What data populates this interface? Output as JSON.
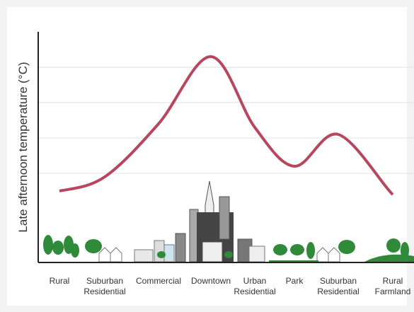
{
  "chart_data": {
    "type": "line",
    "ylabel": "Late afternoon temperature (°C)",
    "categories": [
      "Rural",
      "Suburban Residential",
      "Commercial",
      "Downtown",
      "Urban Residential",
      "Park",
      "Suburban Residential",
      "Rural Farmland"
    ],
    "values": [
      2.0,
      2.4,
      3.9,
      5.8,
      3.8,
      2.7,
      3.6,
      1.9
    ],
    "color": "#b5475f",
    "ylim": [
      0,
      6.5
    ],
    "yticks": [
      2.5,
      3.5,
      4.5,
      5.5
    ],
    "grid": true
  }
}
